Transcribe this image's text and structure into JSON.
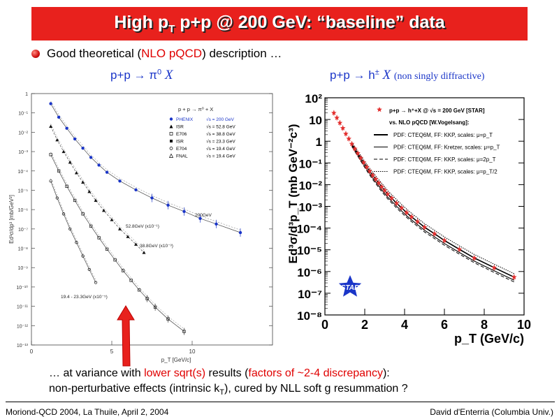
{
  "slide": {
    "title_pre": "High p",
    "title_sub": "T",
    "title_post": " p+p @ 200 GeV: “baseline” data",
    "intro_a": "Good theoretical (",
    "intro_b": "NLO pQCD",
    "intro_c": ") description …",
    "left_sub_a": "p+p → π",
    "left_sub_sup": "0",
    "left_sub_x": "X",
    "right_sub_a": "p+p → h",
    "right_sub_sup": "±",
    "right_sub_x": "X",
    "right_sub_note": "(non singly diffractive)",
    "bottom1_a": "… at variance with ",
    "bottom1_b": "lower sqrt(s)",
    "bottom1_c": " results (",
    "bottom1_d": "factors of ~2-4 discrepancy",
    "bottom1_e": "):",
    "bottom2_a": "non-perturbative effects (intrinsic k",
    "bottom2_sub": "T",
    "bottom2_b": "), cured by NLL soft g resummation ?",
    "footer_left": "Moriond-QCD 2004, La Thuile, April 2, 2004",
    "footer_right": "David d'Enterria (Columbia Univ.)"
  },
  "chart_data": [
    {
      "type": "scatter",
      "y_scale": "log",
      "xlabel": "p_T [GeV/c]",
      "ylabel": "Ed³σ/dp³ [mb/GeV²]",
      "xlim": [
        0,
        15
      ],
      "ylim": [
        1e-13,
        1
      ],
      "x_ticks": [
        "0",
        "5",
        "10"
      ],
      "y_ticks": [
        "1",
        "10⁻¹",
        "10⁻²",
        "10⁻³",
        "10⁻⁴",
        "10⁻⁵",
        "10⁻⁶",
        "10⁻⁷",
        "10⁻⁸",
        "10⁻⁹",
        "10⁻¹⁰",
        "10⁻¹¹",
        "10⁻¹²",
        "10⁻¹³"
      ],
      "legend_header": "p + p → π⁰ + X",
      "legend": [
        {
          "exp": "PHENIX",
          "rs": "√s = 200 GeV",
          "color": "#1a35c8"
        },
        {
          "exp": "ISR",
          "rs": "√s = 52.8 GeV",
          "color": "#000000"
        },
        {
          "exp": "E706",
          "rs": "√s = 38.8 GeV",
          "color": "#000000"
        },
        {
          "exp": "ISR",
          "rs": "√s = 23.3 GeV",
          "color": "#000000"
        },
        {
          "exp": "E704",
          "rs": "√s = 19.4 GeV",
          "color": "#000000"
        },
        {
          "exp": "FNAL",
          "rs": "√s = 19.4 GeV",
          "color": "#000000"
        }
      ],
      "annotations": [
        "200GeV",
        "52.8GeV (x10⁻¹)",
        "38.8GeV (x10⁻³)",
        "19.4 - 23.3GeV (x10⁻⁵)"
      ],
      "series": [
        {
          "name": "PHENIX",
          "x": [
            1.2,
            1.7,
            2.2,
            2.7,
            3.2,
            3.7,
            4.2,
            4.7,
            5.5,
            6.5,
            7.5,
            8.5,
            9.5,
            10.5,
            11.5,
            13.0
          ],
          "y": [
            0.3,
            0.06,
            0.016,
            0.0045,
            0.0015,
            0.0005,
            0.0002,
            8.5e-05,
            3e-05,
            1.05e-05,
            4e-06,
            1.7e-06,
            8e-07,
            3.5e-07,
            1.8e-07,
            6.5e-08
          ]
        },
        {
          "name": "ISR 52.8 GeV (x10⁻¹)",
          "x": [
            1.2,
            1.6,
            2.0,
            2.4,
            2.8,
            3.2,
            3.6,
            4.0,
            4.5,
            5.0,
            5.5,
            6.0,
            6.5,
            7.0
          ],
          "y": [
            0.02,
            0.004,
            0.001,
            0.00028,
            8e-05,
            2.6e-05,
            8.5e-06,
            3e-06,
            9e-07,
            3e-07,
            1e-07,
            4e-08,
            1.6e-08,
            6e-09
          ]
        },
        {
          "name": "E706 38.8 GeV (x10⁻³)",
          "x": [
            1.2,
            1.7,
            2.2,
            2.7,
            3.2,
            3.7,
            4.2,
            4.7,
            5.2,
            5.7,
            6.2,
            6.7,
            7.2,
            7.7,
            8.5,
            9.5
          ],
          "y": [
            0.0007,
            0.0001,
            1.6e-05,
            3e-06,
            6e-07,
            1.4e-07,
            3.5e-08,
            9e-09,
            2.5e-09,
            7e-10,
            2.2e-10,
            7e-11,
            2.5e-11,
            9e-12,
            2.2e-12,
            5e-13
          ]
        },
        {
          "name": "19.4 - 23.3 GeV (x10⁻⁵)",
          "x": [
            1.2,
            1.6,
            2.0,
            2.4,
            2.8,
            3.2,
            3.6,
            4.0
          ],
          "y": [
            3e-05,
            4e-06,
            6e-07,
            1e-07,
            2e-08,
            4e-09,
            8e-10,
            1.7e-10
          ]
        }
      ]
    },
    {
      "type": "scatter",
      "y_scale": "log",
      "xlabel": "p_T (GeV/c)",
      "ylabel": "Ed³σ/d³p_T (mb GeV⁻²c³)",
      "xlim": [
        0,
        10
      ],
      "ylim": [
        1e-08,
        100
      ],
      "x_ticks": [
        "0",
        "2",
        "4",
        "6",
        "8",
        "10"
      ],
      "y_ticks": [
        "10²",
        "10",
        "1",
        "10⁻¹",
        "10⁻²",
        "10⁻³",
        "10⁻⁴",
        "10⁻⁵",
        "10⁻⁶",
        "10⁻⁷",
        "10⁻⁸"
      ],
      "legend": [
        "p+p → h⁺+X @ √s = 200 GeV [STAR]",
        "vs. NLO pQCD [W.Vogelsang]:",
        "PDF: CTEQ6M, FF: KKP, scales: μ=p_T",
        "PDF: CTEQ6M, FF: Kretzer, scales: μ=p_T",
        "PDF: CTEQ6M, FF: KKP, scales: μ=2p_T",
        "PDF: CTEQ6M, FF: KKP, scales: μ=p_T/2"
      ],
      "logo": "STAR",
      "series": [
        {
          "name": "STAR h± (NSD)",
          "x": [
            0.45,
            0.6,
            0.75,
            0.9,
            1.05,
            1.2,
            1.35,
            1.5,
            1.65,
            1.8,
            1.95,
            2.1,
            2.25,
            2.4,
            2.55,
            2.7,
            2.85,
            3.0,
            3.15,
            3.35,
            3.6,
            3.85,
            4.1,
            4.35,
            4.65,
            5.0,
            5.5,
            6.0,
            6.75,
            7.5,
            8.5,
            9.5
          ],
          "y": [
            20,
            12,
            7,
            4,
            2.2,
            1.3,
            0.75,
            0.45,
            0.28,
            0.17,
            0.105,
            0.065,
            0.042,
            0.027,
            0.018,
            0.012,
            0.008,
            0.0055,
            0.0037,
            0.0024,
            0.0014,
            0.00085,
            0.00052,
            0.00033,
            0.0002,
            0.00011,
            5.5e-05,
            2.7e-05,
            1.05e-05,
            4.2e-06,
            1.5e-06,
            5.5e-07
          ]
        }
      ]
    }
  ]
}
